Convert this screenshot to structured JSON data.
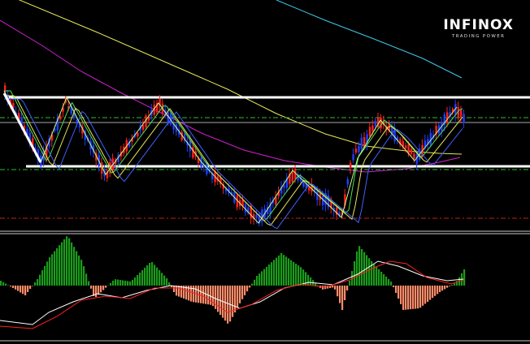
{
  "brand": {
    "name": "INFINOX",
    "tagline": "TRADING POWER"
  },
  "colors": {
    "background": "#000000",
    "bull_candle": "#ff2020",
    "bear_candle": "#2040ff",
    "macd_positive": "#1a9c1a",
    "macd_negative": "#ff8c69",
    "ma_yellow": "#e8e85a",
    "ma_magenta": "#d020d0",
    "ma_cyan": "#40c8e8",
    "ma_blue": "#4060ff",
    "ma_green": "#50e050",
    "zigzag": "#c8ff80",
    "support_resistance": "#ffffff",
    "dashed_green": "#30c030",
    "dashed_red": "#c02020",
    "signal_line": "#ffffff",
    "macd_line": "#ff2020"
  },
  "chart_data": {
    "type": "candlestick",
    "panes": [
      "price",
      "macd-histogram"
    ],
    "price_levels_description": [
      "resistance",
      "support"
    ],
    "has_moving_averages": true,
    "has_zigzag": true,
    "grid": false
  }
}
